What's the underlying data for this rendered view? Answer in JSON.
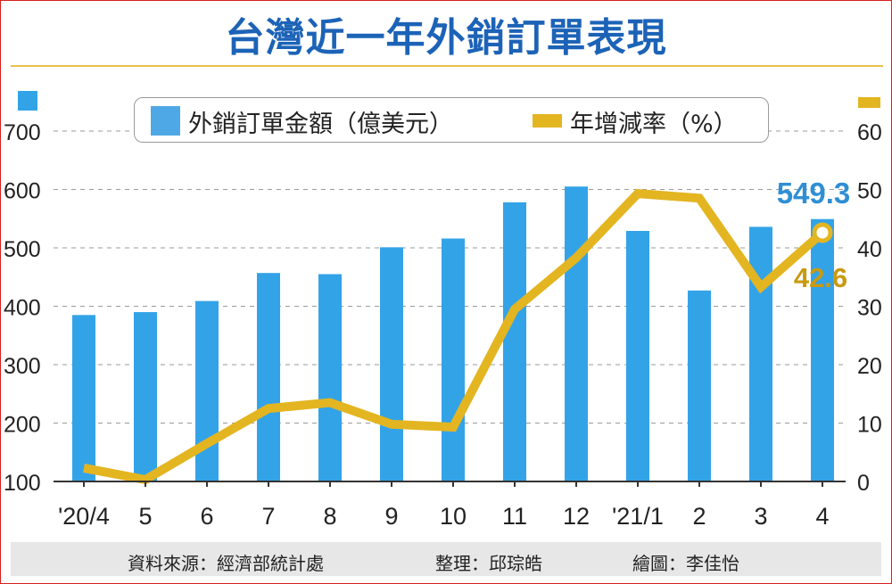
{
  "title": "台灣近一年外銷訂單表現",
  "legend": {
    "bar_label": "外銷訂單金額（億美元）",
    "line_label": "年增減率（%）"
  },
  "footer": {
    "source": "資料來源：經濟部統計處",
    "editor": "整理：邱琮皓",
    "artist": "繪圖：李佳怡"
  },
  "colors": {
    "bar": "#33a3e8",
    "line": "#e3b521",
    "title": "#1c63b7",
    "bar_label": "#2f8fd4",
    "line_label": "#c99a10"
  },
  "chart_data": {
    "type": "bar",
    "categories": [
      "'20/4",
      "5",
      "6",
      "7",
      "8",
      "9",
      "10",
      "11",
      "12",
      "'21/1",
      "2",
      "3",
      "4"
    ],
    "series": [
      {
        "name": "外銷訂單金額（億美元）",
        "type": "bar",
        "axis": "left",
        "values": [
          385,
          390,
          409,
          457,
          455,
          501,
          516,
          578,
          605,
          529,
          427,
          536,
          549.3
        ]
      },
      {
        "name": "年增減率（%）",
        "type": "line",
        "axis": "right",
        "values": [
          2.3,
          0.3,
          6.5,
          12.5,
          13.5,
          9.8,
          9.3,
          29.5,
          38.3,
          49.3,
          48.5,
          33.3,
          42.6
        ]
      }
    ],
    "y_left": {
      "ylim": [
        100,
        700
      ],
      "ticks": [
        "100",
        "200",
        "300",
        "400",
        "500",
        "600",
        "700"
      ]
    },
    "y_right": {
      "ylim": [
        0,
        60
      ],
      "ticks": [
        "0",
        "10",
        "20",
        "30",
        "40",
        "50",
        "60"
      ]
    },
    "annotations": {
      "bar_last": "549.3",
      "line_last": "42.6"
    },
    "grid": true,
    "legend_position": "top"
  }
}
